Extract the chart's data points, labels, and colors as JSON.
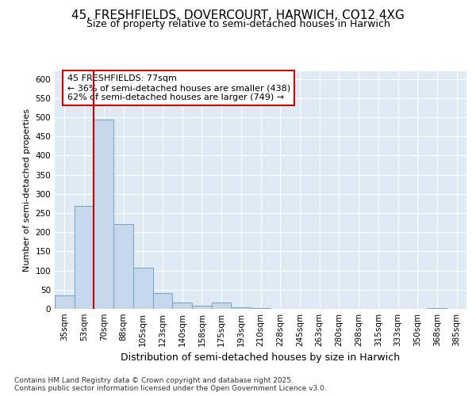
{
  "title_line1": "45, FRESHFIELDS, DOVERCOURT, HARWICH, CO12 4XG",
  "title_line2": "Size of property relative to semi-detached houses in Harwich",
  "xlabel": "Distribution of semi-detached houses by size in Harwich",
  "ylabel": "Number of semi-detached properties",
  "categories": [
    "35sqm",
    "53sqm",
    "70sqm",
    "88sqm",
    "105sqm",
    "123sqm",
    "140sqm",
    "158sqm",
    "175sqm",
    "193sqm",
    "210sqm",
    "228sqm",
    "245sqm",
    "263sqm",
    "280sqm",
    "298sqm",
    "315sqm",
    "333sqm",
    "350sqm",
    "368sqm",
    "385sqm"
  ],
  "values": [
    35,
    268,
    493,
    222,
    108,
    42,
    16,
    9,
    16,
    5,
    2,
    0,
    0,
    0,
    0,
    0,
    0,
    0,
    0,
    2,
    0
  ],
  "bar_color": "#c8d8ec",
  "bar_edge_color": "#7aaac8",
  "red_line_color": "#cc0000",
  "red_line_x": 2.0,
  "annotation_text": "45 FRESHFIELDS: 77sqm\n← 36% of semi-detached houses are smaller (438)\n62% of semi-detached houses are larger (749) →",
  "annotation_box_color": "#cc0000",
  "footer_text": "Contains HM Land Registry data © Crown copyright and database right 2025.\nContains public sector information licensed under the Open Government Licence v3.0.",
  "ylim": [
    0,
    620
  ],
  "yticks": [
    0,
    50,
    100,
    150,
    200,
    250,
    300,
    350,
    400,
    450,
    500,
    550,
    600
  ],
  "fig_bg_color": "#ffffff",
  "plot_bg_color": "#e0eaf4",
  "grid_color": "#ffffff",
  "title1_fontsize": 11,
  "title2_fontsize": 9,
  "ylabel_fontsize": 8,
  "xlabel_fontsize": 9,
  "tick_fontsize": 7.5,
  "footer_fontsize": 6.5
}
